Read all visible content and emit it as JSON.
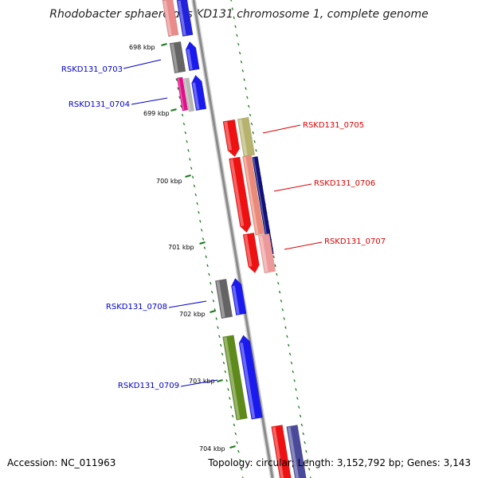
{
  "title": "Rhodobacter sphaeroides KD131 chromosome 1, complete genome",
  "footer": {
    "accession": "Accession: NC_011963",
    "topology": "Topology: circular; Length: 3,152,792 bp; Genes: 3,143"
  },
  "ticks": [
    {
      "label": "698 kbp"
    },
    {
      "label": "699 kbp"
    },
    {
      "label": "700 kbp"
    },
    {
      "label": "701 kbp"
    },
    {
      "label": "702 kbp"
    },
    {
      "label": "703 kbp"
    },
    {
      "label": "704 kbp"
    }
  ],
  "genes": [
    {
      "label": "RSKD131_0703",
      "color": "#0000cc"
    },
    {
      "label": "RSKD131_0704",
      "color": "#0000cc"
    },
    {
      "label": "RSKD131_0705",
      "color": "#dd0000"
    },
    {
      "label": "RSKD131_0706",
      "color": "#dd0000"
    },
    {
      "label": "RSKD131_0707",
      "color": "#dd0000"
    },
    {
      "label": "RSKD131_0708",
      "color": "#0000cc"
    },
    {
      "label": "RSKD131_0709",
      "color": "#0000cc"
    }
  ],
  "colors": {
    "backbone": "#8a8a8a",
    "tick": "#1a7a1a",
    "plus_strand": "#dd0000",
    "minus_strand": "#0000cc"
  }
}
